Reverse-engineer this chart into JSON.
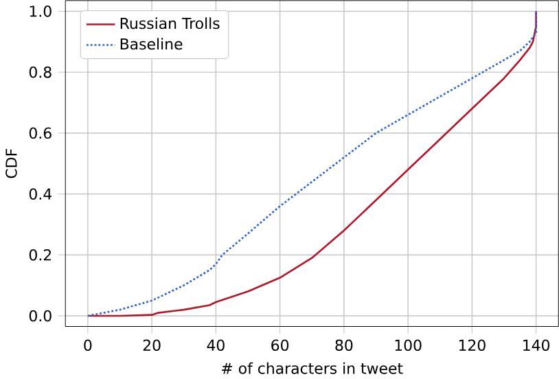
{
  "chart_data": {
    "type": "line",
    "xlabel": "# of characters in tweet",
    "ylabel": "CDF",
    "xlim": [
      -7,
      147
    ],
    "ylim": [
      -0.035,
      1.035
    ],
    "xticks": [
      0,
      20,
      40,
      60,
      80,
      100,
      120,
      140
    ],
    "yticks": [
      {
        "value": 0,
        "label": "0.0"
      },
      {
        "value": 0.2,
        "label": "0.2"
      },
      {
        "value": 0.4,
        "label": "0.4"
      },
      {
        "value": 0.6,
        "label": "0.6"
      },
      {
        "value": 0.8,
        "label": "0.8"
      },
      {
        "value": 1,
        "label": "1.0"
      }
    ],
    "grid": true,
    "legend": "top left",
    "series": [
      {
        "name": "Russian Trolls",
        "color": "#b2182b",
        "line_style": "solid",
        "x": [
          0,
          10,
          20,
          22,
          30,
          38,
          40,
          50,
          60,
          70,
          80,
          90,
          100,
          110,
          120,
          130,
          135,
          138,
          139,
          140,
          140
        ],
        "values": [
          0,
          0,
          0.003,
          0.01,
          0.02,
          0.035,
          0.045,
          0.08,
          0.125,
          0.19,
          0.28,
          0.38,
          0.48,
          0.58,
          0.68,
          0.78,
          0.84,
          0.88,
          0.9,
          0.95,
          1.0
        ]
      },
      {
        "name": "Baseline",
        "color": "#3366cc",
        "line_style": "dotted",
        "x": [
          0,
          10,
          20,
          30,
          38,
          40,
          42,
          50,
          60,
          70,
          80,
          90,
          100,
          110,
          120,
          130,
          135,
          138,
          140,
          140
        ],
        "values": [
          0,
          0.02,
          0.05,
          0.1,
          0.15,
          0.17,
          0.2,
          0.27,
          0.36,
          0.44,
          0.52,
          0.6,
          0.66,
          0.72,
          0.78,
          0.84,
          0.87,
          0.9,
          0.93,
          1.0
        ]
      }
    ]
  }
}
